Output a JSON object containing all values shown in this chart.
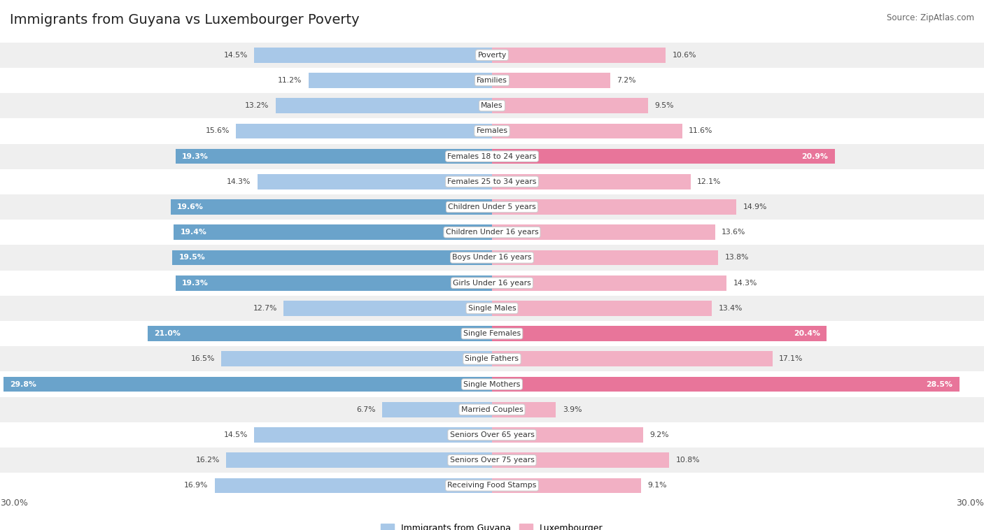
{
  "title": "Immigrants from Guyana vs Luxembourger Poverty",
  "source": "Source: ZipAtlas.com",
  "categories": [
    "Poverty",
    "Families",
    "Males",
    "Females",
    "Females 18 to 24 years",
    "Females 25 to 34 years",
    "Children Under 5 years",
    "Children Under 16 years",
    "Boys Under 16 years",
    "Girls Under 16 years",
    "Single Males",
    "Single Females",
    "Single Fathers",
    "Single Mothers",
    "Married Couples",
    "Seniors Over 65 years",
    "Seniors Over 75 years",
    "Receiving Food Stamps"
  ],
  "left_values": [
    14.5,
    11.2,
    13.2,
    15.6,
    19.3,
    14.3,
    19.6,
    19.4,
    19.5,
    19.3,
    12.7,
    21.0,
    16.5,
    29.8,
    6.7,
    14.5,
    16.2,
    16.9
  ],
  "right_values": [
    10.6,
    7.2,
    9.5,
    11.6,
    20.9,
    12.1,
    14.9,
    13.6,
    13.8,
    14.3,
    13.4,
    20.4,
    17.1,
    28.5,
    3.9,
    9.2,
    10.8,
    9.1
  ],
  "left_color_normal": "#a8c8e8",
  "left_color_highlight": "#6aa3cb",
  "right_color_normal": "#f2b0c4",
  "right_color_highlight": "#e8759a",
  "label_left": "Immigrants from Guyana",
  "label_right": "Luxembourger",
  "axis_max": 30.0,
  "background_row_odd": "#efefef",
  "background_row_even": "#ffffff",
  "bar_height": 0.6,
  "highlight_threshold": 19.0
}
